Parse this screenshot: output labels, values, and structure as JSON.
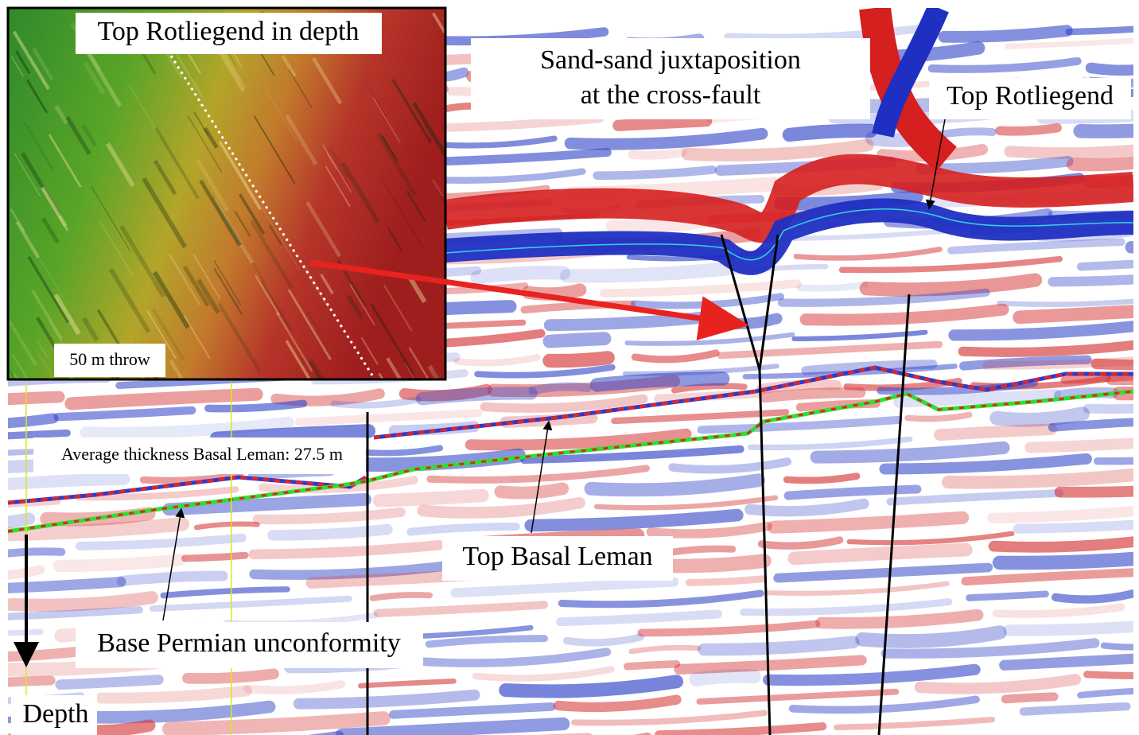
{
  "inset": {
    "title": "Top Rotliegend in depth",
    "scale_label": "50 m throw"
  },
  "annotations": {
    "juxtaposition": [
      "Sand-sand juxtaposition",
      "at the cross-fault"
    ],
    "top_rotliegend": "Top Rotliegend",
    "average_thickness": "Average thickness Basal Leman: 27.5 m",
    "top_basal_leman": "Top Basal Leman",
    "base_permian": "Base Permian unconformity",
    "depth": "Depth"
  }
}
